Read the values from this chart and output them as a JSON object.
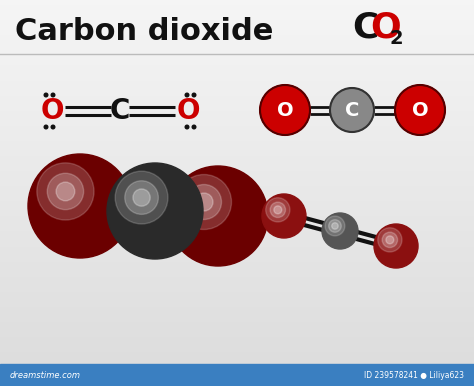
{
  "title_left": "Carbon dioxide",
  "title_right_C": "C",
  "title_right_O": "O",
  "title_right_sub": "2",
  "red_color": "#cc0000",
  "dark_red_color": "#7a0000",
  "mid_red_color": "#aa1111",
  "carbon_color": "#666666",
  "carbon_dark": "#3a3a3a",
  "bond_color": "#111111",
  "text_black": "#111111",
  "watermark_text": "dreamstime.com",
  "watermark_id": "ID 239578241 ● Liliya623"
}
